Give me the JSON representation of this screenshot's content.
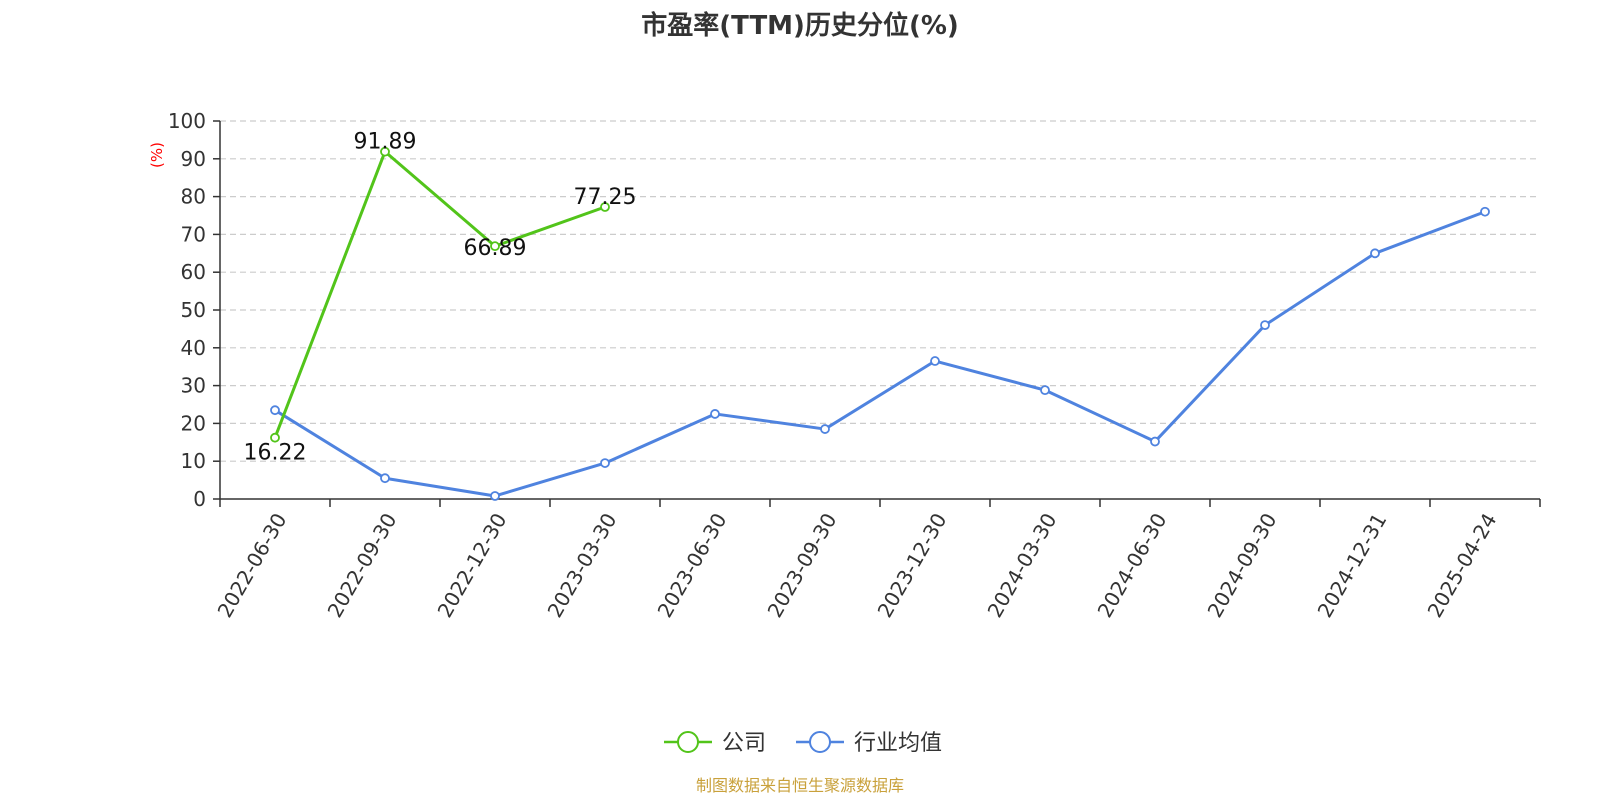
{
  "colors": {
    "company": "#52c41a",
    "industry": "#4f83df",
    "axis": "#333333",
    "grid": "#cccccc",
    "ylabel": "#ff0000",
    "source": "#c9a13b"
  },
  "chart_data": {
    "type": "line",
    "title": "市盈率(TTM)历史分位(%)",
    "ylabel": "(%)",
    "xlabel": "",
    "ylim": [
      0,
      100
    ],
    "yticks": [
      0,
      10,
      20,
      30,
      40,
      50,
      60,
      70,
      80,
      90,
      100
    ],
    "categories": [
      "2022-06-30",
      "2022-09-30",
      "2022-12-30",
      "2023-03-30",
      "2023-06-30",
      "2023-09-30",
      "2023-12-30",
      "2024-03-30",
      "2024-06-30",
      "2024-09-30",
      "2024-12-31",
      "2025-04-24"
    ],
    "grid": true,
    "legend_position": "bottom-center",
    "series": [
      {
        "name": "公司",
        "color_key": "company",
        "values": [
          16.22,
          91.89,
          66.89,
          77.25,
          null,
          null,
          null,
          null,
          null,
          null,
          null,
          null
        ],
        "labels": [
          "16.22",
          "91.89",
          "66.89",
          "77.25",
          "",
          "",
          "",
          "",
          "",
          "",
          "",
          ""
        ]
      },
      {
        "name": "行业均值",
        "color_key": "industry",
        "values": [
          23.5,
          5.5,
          0.8,
          9.5,
          22.5,
          18.5,
          36.5,
          28.8,
          15.2,
          46.0,
          65.0,
          76.0
        ],
        "labels": [
          "",
          "",
          "",
          "",
          "",
          "",
          "",
          "",
          "",
          "",
          "",
          ""
        ]
      }
    ]
  },
  "footer": {
    "source": "制图数据来自恒生聚源数据库"
  }
}
